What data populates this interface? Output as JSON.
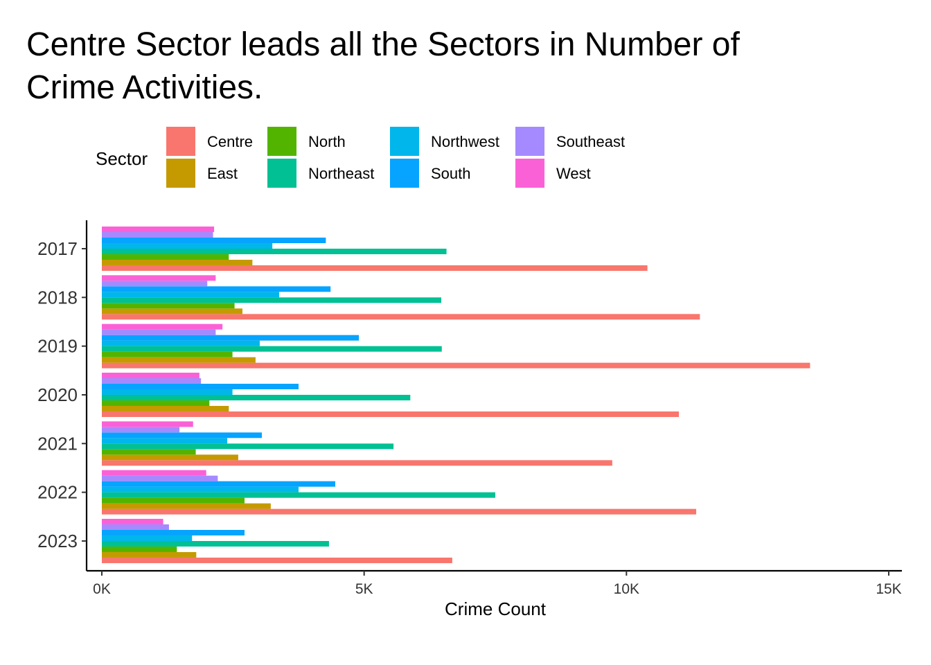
{
  "chart_data": {
    "type": "bar",
    "orientation": "horizontal",
    "title_lines": [
      "Centre Sector leads all the Sectors in Number of",
      "Crime Activities."
    ],
    "xlabel": "Crime Count",
    "ylabel": "",
    "legend_title": "Sector",
    "legend_position": "top",
    "grid": false,
    "xlim": [
      0,
      15000
    ],
    "x_ticks": [
      0,
      5000,
      10000,
      15000
    ],
    "x_tick_labels": [
      "0K",
      "5K",
      "10K",
      "15K"
    ],
    "categories": [
      "2017",
      "2018",
      "2019",
      "2020",
      "2021",
      "2022",
      "2023"
    ],
    "series": [
      {
        "name": "Centre",
        "color": "#F8766D",
        "values": [
          10400,
          11400,
          13500,
          11000,
          9730,
          11330,
          6680
        ]
      },
      {
        "name": "East",
        "color": "#C49A00",
        "values": [
          2870,
          2680,
          2930,
          2420,
          2600,
          3220,
          1800
        ]
      },
      {
        "name": "North",
        "color": "#53B400",
        "values": [
          2420,
          2530,
          2490,
          2050,
          1790,
          2720,
          1430
        ]
      },
      {
        "name": "Northeast",
        "color": "#00C094",
        "values": [
          6570,
          6470,
          6480,
          5880,
          5560,
          7500,
          4330
        ]
      },
      {
        "name": "Northwest",
        "color": "#00B6EB",
        "values": [
          3250,
          3380,
          3010,
          2490,
          2390,
          3750,
          1720
        ]
      },
      {
        "name": "South",
        "color": "#06A4FF",
        "values": [
          4270,
          4360,
          4900,
          3750,
          3050,
          4450,
          2720
        ]
      },
      {
        "name": "Southeast",
        "color": "#A58AFF",
        "values": [
          2120,
          2010,
          2170,
          1890,
          1480,
          2210,
          1280
        ]
      },
      {
        "name": "West",
        "color": "#FB61D7",
        "values": [
          2140,
          2170,
          2300,
          1860,
          1740,
          1990,
          1170
        ]
      }
    ]
  }
}
